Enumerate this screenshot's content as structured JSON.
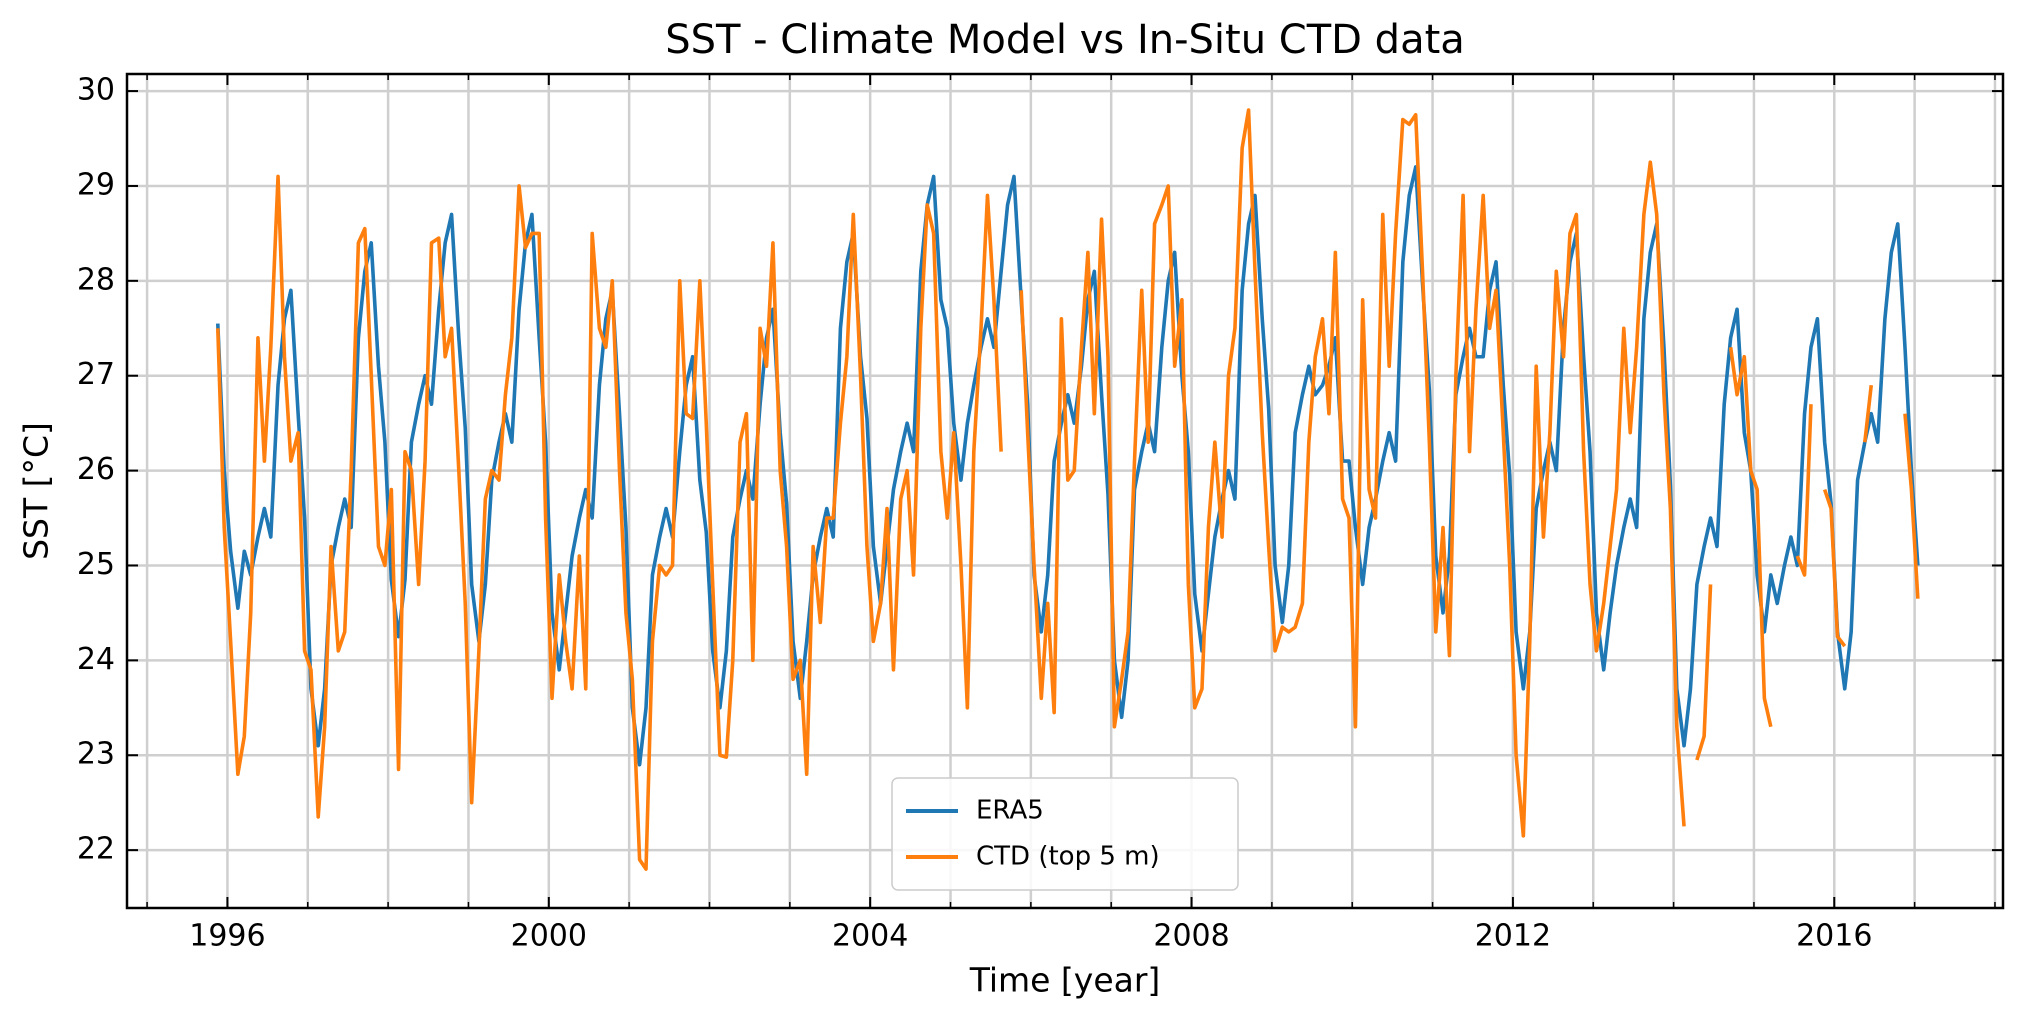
{
  "chart_data": {
    "type": "line",
    "title": "SST - Climate Model vs In-Situ CTD data",
    "xlabel": "Time [year]",
    "ylabel": "SST [°C]",
    "xlim": [
      1994.75,
      2018.1
    ],
    "ylim": [
      21.39,
      30.18
    ],
    "xticks": [
      1996,
      2000,
      2004,
      2008,
      2012,
      2016
    ],
    "xminorticks": [
      1995,
      1996,
      1997,
      1998,
      1999,
      2000,
      2001,
      2002,
      2003,
      2004,
      2005,
      2006,
      2007,
      2008,
      2009,
      2010,
      2011,
      2012,
      2013,
      2014,
      2015,
      2016,
      2017,
      2018
    ],
    "yticks": [
      22,
      23,
      24,
      25,
      26,
      27,
      28,
      29,
      30
    ],
    "grid": true,
    "legend": "lower center",
    "x": [
      1995.88,
      1995.96,
      1996.04,
      1996.13,
      1996.21,
      1996.29,
      1996.38,
      1996.46,
      1996.54,
      1996.63,
      1996.71,
      1996.79,
      1996.88,
      1996.96,
      1997.04,
      1997.13,
      1997.21,
      1997.29,
      1997.38,
      1997.46,
      1997.54,
      1997.63,
      1997.71,
      1997.79,
      1997.88,
      1997.96,
      1998.04,
      1998.13,
      1998.21,
      1998.29,
      1998.38,
      1998.46,
      1998.54,
      1998.63,
      1998.71,
      1998.79,
      1998.88,
      1998.96,
      1999.04,
      1999.13,
      1999.21,
      1999.29,
      1999.38,
      1999.46,
      1999.54,
      1999.63,
      1999.71,
      1999.79,
      1999.88,
      1999.96,
      2000.04,
      2000.13,
      2000.21,
      2000.29,
      2000.38,
      2000.46,
      2000.54,
      2000.63,
      2000.71,
      2000.79,
      2000.88,
      2000.96,
      2001.04,
      2001.13,
      2001.21,
      2001.29,
      2001.38,
      2001.46,
      2001.54,
      2001.63,
      2001.71,
      2001.79,
      2001.88,
      2001.96,
      2002.04,
      2002.13,
      2002.21,
      2002.29,
      2002.38,
      2002.46,
      2002.54,
      2002.63,
      2002.71,
      2002.79,
      2002.88,
      2002.96,
      2003.04,
      2003.13,
      2003.21,
      2003.29,
      2003.38,
      2003.46,
      2003.54,
      2003.63,
      2003.71,
      2003.79,
      2003.88,
      2003.96,
      2004.04,
      2004.13,
      2004.21,
      2004.29,
      2004.38,
      2004.46,
      2004.54,
      2004.63,
      2004.71,
      2004.79,
      2004.88,
      2004.96,
      2005.04,
      2005.13,
      2005.21,
      2005.29,
      2005.38,
      2005.46,
      2005.54,
      2005.63,
      2005.71,
      2005.79,
      2005.88,
      2005.96,
      2006.04,
      2006.13,
      2006.21,
      2006.29,
      2006.38,
      2006.46,
      2006.54,
      2006.63,
      2006.71,
      2006.79,
      2006.88,
      2006.96,
      2007.04,
      2007.13,
      2007.21,
      2007.29,
      2007.38,
      2007.46,
      2007.54,
      2007.63,
      2007.71,
      2007.79,
      2007.88,
      2007.96,
      2008.04,
      2008.13,
      2008.21,
      2008.29,
      2008.38,
      2008.46,
      2008.54,
      2008.63,
      2008.71,
      2008.79,
      2008.88,
      2008.96,
      2009.04,
      2009.13,
      2009.21,
      2009.29,
      2009.38,
      2009.46,
      2009.54,
      2009.63,
      2009.71,
      2009.79,
      2009.88,
      2009.96,
      2010.04,
      2010.13,
      2010.21,
      2010.29,
      2010.38,
      2010.46,
      2010.54,
      2010.63,
      2010.71,
      2010.79,
      2010.88,
      2010.96,
      2011.04,
      2011.13,
      2011.21,
      2011.29,
      2011.38,
      2011.46,
      2011.54,
      2011.63,
      2011.71,
      2011.79,
      2011.88,
      2011.96,
      2012.04,
      2012.13,
      2012.21,
      2012.29,
      2012.38,
      2012.46,
      2012.54,
      2012.63,
      2012.71,
      2012.79,
      2012.88,
      2012.96,
      2013.04,
      2013.13,
      2013.21,
      2013.29,
      2013.38,
      2013.46,
      2013.54,
      2013.63,
      2013.71,
      2013.79,
      2013.88,
      2013.96,
      2014.04,
      2014.13,
      2014.21,
      2014.29,
      2014.38,
      2014.46,
      2014.54,
      2014.63,
      2014.71,
      2014.79,
      2014.88,
      2014.96,
      2015.04,
      2015.13,
      2015.21,
      2015.29,
      2015.38,
      2015.46,
      2015.54,
      2015.63,
      2015.71,
      2015.79,
      2015.88,
      2015.96,
      2016.04,
      2016.13,
      2016.21,
      2016.29,
      2016.38,
      2016.46,
      2016.54,
      2016.63,
      2016.71,
      2016.79,
      2016.88,
      2016.96,
      2017.04
    ],
    "series": [
      {
        "name": "ERA5",
        "color": "#1f77b4",
        "values": [
          27.55,
          26.0,
          25.15,
          24.55,
          25.15,
          24.9,
          25.3,
          25.6,
          25.3,
          26.9,
          27.6,
          27.9,
          26.6,
          25.5,
          23.7,
          23.1,
          23.7,
          25.0,
          25.4,
          25.7,
          25.4,
          27.4,
          28.1,
          28.4,
          27.1,
          26.3,
          24.85,
          24.25,
          24.85,
          26.3,
          26.7,
          27.0,
          26.7,
          27.7,
          28.4,
          28.7,
          27.4,
          26.45,
          24.8,
          24.2,
          24.8,
          25.9,
          26.3,
          26.6,
          26.3,
          27.7,
          28.4,
          28.7,
          27.4,
          26.3,
          24.5,
          23.9,
          24.5,
          25.1,
          25.5,
          25.8,
          25.5,
          26.9,
          27.6,
          27.9,
          26.6,
          25.4,
          23.5,
          22.9,
          23.5,
          24.9,
          25.3,
          25.6,
          25.3,
          26.2,
          26.9,
          27.2,
          25.9,
          25.35,
          24.1,
          23.5,
          24.1,
          25.3,
          25.7,
          26.0,
          25.7,
          26.7,
          27.4,
          27.7,
          26.4,
          25.65,
          24.2,
          23.6,
          24.2,
          24.9,
          25.3,
          25.6,
          25.3,
          27.5,
          28.2,
          28.5,
          27.2,
          26.55,
          25.2,
          24.6,
          25.2,
          25.8,
          26.2,
          26.5,
          26.2,
          28.1,
          28.8,
          29.1,
          27.8,
          27.5,
          26.5,
          25.9,
          26.5,
          26.9,
          27.3,
          27.6,
          27.3,
          28.1,
          28.8,
          29.1,
          27.8,
          26.7,
          24.9,
          24.3,
          24.9,
          26.1,
          26.5,
          26.8,
          26.5,
          27.1,
          27.8,
          28.1,
          26.8,
          25.75,
          24.0,
          23.4,
          24.0,
          25.8,
          26.2,
          26.5,
          26.2,
          27.3,
          28.0,
          28.3,
          27.0,
          26.2,
          24.7,
          24.1,
          24.7,
          25.3,
          25.7,
          26.0,
          25.7,
          27.9,
          28.6,
          28.9,
          27.6,
          26.65,
          25.0,
          24.4,
          25.0,
          26.4,
          26.8,
          27.1,
          26.8,
          26.9,
          27.1,
          27.4,
          26.1,
          26.1,
          25.4,
          24.8,
          25.4,
          25.7,
          26.1,
          26.4,
          26.1,
          28.2,
          28.9,
          29.2,
          27.9,
          26.85,
          25.1,
          24.5,
          25.1,
          26.8,
          27.2,
          27.5,
          27.2,
          27.2,
          27.9,
          28.2,
          26.9,
          25.95,
          24.3,
          23.7,
          24.3,
          25.6,
          26.0,
          26.3,
          26.0,
          27.5,
          28.2,
          28.5,
          27.2,
          26.2,
          24.5,
          23.9,
          24.5,
          25.0,
          25.4,
          25.7,
          25.4,
          27.6,
          28.3,
          28.6,
          27.3,
          25.85,
          23.7,
          23.1,
          23.7,
          24.8,
          25.2,
          25.5,
          25.2,
          26.7,
          27.4,
          27.7,
          26.4,
          26.0,
          24.9,
          24.3,
          24.9,
          24.6,
          25.0,
          25.3,
          25.0,
          26.6,
          27.3,
          27.6,
          26.3,
          25.65,
          24.3,
          23.7,
          24.3,
          25.9,
          26.3,
          26.6,
          26.3,
          27.6,
          28.3,
          28.6,
          27.3,
          26.0,
          25.0
        ]
      },
      {
        "name": "CTD (top 5 m)",
        "color": "#ff7f0e",
        "values": [
          27.5,
          25.4,
          24.2,
          22.8,
          23.2,
          24.5,
          27.4,
          26.1,
          27.3,
          29.1,
          27.2,
          26.1,
          26.4,
          24.1,
          23.9,
          22.35,
          23.3,
          25.2,
          24.1,
          24.3,
          26.0,
          28.4,
          28.55,
          27.0,
          25.2,
          25.0,
          25.8,
          22.85,
          26.2,
          26.0,
          24.8,
          26.1,
          28.4,
          28.45,
          27.2,
          27.5,
          26.0,
          24.6,
          22.5,
          24.1,
          25.7,
          26.0,
          25.9,
          26.8,
          27.4,
          29.0,
          28.35,
          28.5,
          28.5,
          25.5,
          23.6,
          24.9,
          24.2,
          23.7,
          25.1,
          23.7,
          28.5,
          27.5,
          27.3,
          28.0,
          26.0,
          24.5,
          23.8,
          21.9,
          21.8,
          24.2,
          25.0,
          24.9,
          25.0,
          28.0,
          26.6,
          26.55,
          28.0,
          26.5,
          24.8,
          23.0,
          22.98,
          24.0,
          26.3,
          26.6,
          24.0,
          27.5,
          27.1,
          28.4,
          26.0,
          25.2,
          23.8,
          24.0,
          22.8,
          25.2,
          24.4,
          25.5,
          25.5,
          26.5,
          27.2,
          28.7,
          27.0,
          25.2,
          24.2,
          24.6,
          25.6,
          23.9,
          25.7,
          26.0,
          24.9,
          27.5,
          28.8,
          28.5,
          26.2,
          25.5,
          26.4,
          25.0,
          23.5,
          26.2,
          27.5,
          28.9,
          27.8,
          26.2,
          null,
          null,
          27.9,
          26.4,
          25.0,
          23.6,
          24.6,
          23.45,
          27.6,
          25.9,
          26.0,
          27.3,
          28.3,
          26.6,
          28.65,
          27.2,
          23.3,
          23.8,
          24.3,
          26.1,
          27.9,
          26.3,
          28.6,
          28.8,
          29.0,
          27.1,
          27.8,
          24.8,
          23.5,
          23.7,
          25.4,
          26.3,
          25.3,
          27.0,
          27.5,
          29.4,
          29.8,
          28.1,
          26.4,
          25.2,
          24.1,
          24.35,
          24.3,
          24.35,
          24.6,
          26.3,
          27.2,
          27.6,
          26.6,
          28.3,
          25.7,
          25.5,
          23.3,
          27.8,
          25.8,
          25.5,
          28.7,
          27.1,
          28.5,
          29.7,
          29.65,
          29.75,
          28.0,
          26.3,
          24.3,
          25.4,
          24.05,
          27.0,
          28.9,
          26.2,
          27.7,
          28.9,
          27.5,
          27.9,
          26.4,
          25.0,
          23.0,
          22.15,
          24.2,
          27.1,
          25.3,
          26.4,
          28.1,
          27.2,
          28.5,
          28.7,
          26.2,
          24.8,
          24.1,
          24.6,
          25.2,
          25.8,
          27.5,
          26.4,
          27.3,
          28.7,
          29.25,
          28.7,
          26.8,
          25.6,
          23.3,
          22.25,
          null,
          22.95,
          23.2,
          24.8,
          null,
          null,
          27.3,
          26.8,
          27.2,
          26.0,
          25.8,
          23.6,
          23.3,
          null,
          null,
          null,
          25.1,
          24.9,
          26.7,
          null,
          25.8,
          25.6,
          24.25,
          24.15,
          null,
          null,
          26.3,
          26.9,
          null,
          null,
          null,
          null,
          26.6,
          25.8,
          24.65
        ]
      }
    ]
  }
}
